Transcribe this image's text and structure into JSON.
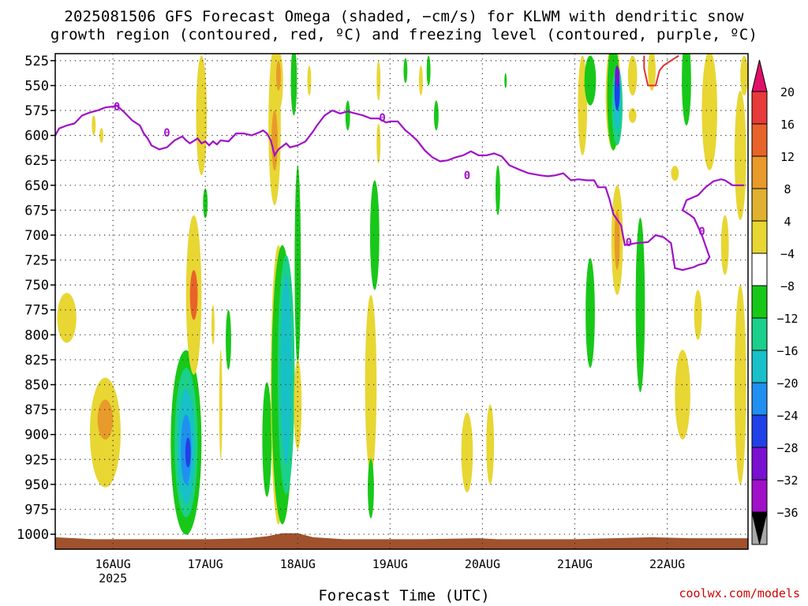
{
  "title": {
    "line1": "2025081506 GFS Forecast Omega (shaded, −cm/s) for KLWM with dendritic snow",
    "line2": "growth region (contoured, red, ºC) and freezing level (contoured, purple, ºC)"
  },
  "credit": "coolwx.com/models",
  "chart_data": {
    "type": "heatmap",
    "title": "2025081506 GFS Forecast Omega (shaded, −cm/s) for KLWM with dendritic snow growth region (contoured, red, ºC) and freezing level (contoured, purple, ºC)",
    "xlabel": "Forecast Time (UTC)",
    "ylabel": "",
    "x_range_hours": [
      -15,
      165
    ],
    "x_ticks": [
      {
        "hour": 0,
        "label": "16AUG",
        "sub": "2025"
      },
      {
        "hour": 24,
        "label": "17AUG",
        "sub": ""
      },
      {
        "hour": 48,
        "label": "18AUG",
        "sub": ""
      },
      {
        "hour": 72,
        "label": "19AUG",
        "sub": ""
      },
      {
        "hour": 96,
        "label": "20AUG",
        "sub": ""
      },
      {
        "hour": 120,
        "label": "21AUG",
        "sub": ""
      },
      {
        "hour": 144,
        "label": "22AUG",
        "sub": ""
      }
    ],
    "y_range_hpa": [
      1015,
      518
    ],
    "y_ticks": [
      525,
      550,
      575,
      600,
      625,
      650,
      675,
      700,
      725,
      750,
      775,
      800,
      825,
      850,
      875,
      900,
      925,
      950,
      975,
      1000
    ],
    "grid": true,
    "colorbar": {
      "labels": [
        "20",
        "16",
        "12",
        "8",
        "4",
        "−4",
        "−8",
        "−12",
        "−16",
        "−20",
        "−24",
        "−28",
        "−32",
        "−36"
      ],
      "colors": [
        "#e8d633",
        "#e0b030",
        "#e89a2a",
        "#e8632a",
        "#e83a3a"
      ],
      "neg_colors": [
        "#18c818",
        "#1ad08a",
        "#18c0c8",
        "#2090f0",
        "#2040e8",
        "#7a10d0",
        "#a010c8",
        "#a8a8a8"
      ],
      "top_arrow": "#e0106a",
      "bottom_arrow": "#000000"
    },
    "freezing_level": {
      "label": "0",
      "color": "#a010c8",
      "points": [
        [
          -15,
          600
        ],
        [
          -14,
          593
        ],
        [
          -12,
          590
        ],
        [
          -10,
          588
        ],
        [
          -8,
          580
        ],
        [
          -6,
          577
        ],
        [
          -4,
          575
        ],
        [
          -2,
          572
        ],
        [
          0,
          571
        ],
        [
          1,
          570
        ],
        [
          3,
          577
        ],
        [
          5,
          585
        ],
        [
          7,
          590
        ],
        [
          8,
          598
        ],
        [
          9,
          603
        ],
        [
          10,
          610
        ],
        [
          12,
          614
        ],
        [
          14,
          612
        ],
        [
          16,
          605
        ],
        [
          18,
          601
        ],
        [
          19,
          605
        ],
        [
          20,
          608
        ],
        [
          22,
          603
        ],
        [
          23,
          608
        ],
        [
          24,
          606
        ],
        [
          25,
          610
        ],
        [
          26,
          606
        ],
        [
          27,
          609
        ],
        [
          28,
          605
        ],
        [
          30,
          606
        ],
        [
          32,
          598
        ],
        [
          34,
          598
        ],
        [
          36,
          600
        ],
        [
          38,
          597
        ],
        [
          39,
          595
        ],
        [
          40,
          598
        ],
        [
          41,
          605
        ],
        [
          42,
          620
        ],
        [
          43,
          614
        ],
        [
          45,
          608
        ],
        [
          46,
          612
        ],
        [
          48,
          610
        ],
        [
          50,
          606
        ],
        [
          52,
          596
        ],
        [
          53,
          590
        ],
        [
          55,
          580
        ],
        [
          57,
          575
        ],
        [
          59,
          578
        ],
        [
          61,
          576
        ],
        [
          63,
          578
        ],
        [
          65,
          580
        ],
        [
          67,
          583
        ],
        [
          69,
          583
        ],
        [
          71,
          587
        ],
        [
          72,
          586
        ],
        [
          74,
          586
        ],
        [
          76,
          595
        ],
        [
          77,
          598
        ],
        [
          79,
          605
        ],
        [
          81,
          615
        ],
        [
          83,
          622
        ],
        [
          85,
          626
        ],
        [
          87,
          625
        ],
        [
          89,
          622
        ],
        [
          91,
          620
        ],
        [
          93,
          616
        ],
        [
          95,
          620
        ],
        [
          97,
          620
        ],
        [
          99,
          618
        ],
        [
          101,
          621
        ],
        [
          103,
          630
        ],
        [
          106,
          635
        ],
        [
          108,
          638
        ],
        [
          111,
          640
        ],
        [
          113,
          641
        ],
        [
          115,
          640
        ],
        [
          117,
          638
        ],
        [
          119,
          645
        ],
        [
          121,
          644
        ],
        [
          123,
          645
        ],
        [
          125,
          645
        ],
        [
          126,
          652
        ],
        [
          128,
          652
        ],
        [
          129,
          664
        ],
        [
          130,
          679
        ],
        [
          132,
          690
        ],
        [
          133,
          710
        ],
        [
          136,
          708
        ],
        [
          139,
          707
        ],
        [
          141,
          700
        ],
        [
          143,
          702
        ],
        [
          145,
          708
        ],
        [
          146,
          733
        ],
        [
          148,
          735
        ],
        [
          151,
          732
        ],
        [
          152,
          730
        ],
        [
          154,
          728
        ],
        [
          155,
          722
        ],
        [
          153,
          700
        ],
        [
          151,
          683
        ],
        [
          150,
          680
        ],
        [
          148,
          675
        ],
        [
          149,
          665
        ],
        [
          152,
          660
        ],
        [
          154,
          652
        ],
        [
          156,
          646
        ],
        [
          158,
          644
        ],
        [
          159,
          645
        ],
        [
          161,
          650
        ],
        [
          164,
          650
        ]
      ]
    },
    "dendritic_contour": {
      "color": "#e03030",
      "points": [
        [
          138,
          520
        ],
        [
          138,
          533
        ],
        [
          139,
          550
        ],
        [
          141,
          550
        ],
        [
          142,
          535
        ],
        [
          143,
          530
        ],
        [
          145,
          525
        ],
        [
          147,
          520
        ]
      ]
    },
    "terrain": {
      "color": "#a0522d",
      "points": [
        [
          -15,
          1003
        ],
        [
          -5,
          1005
        ],
        [
          5,
          1005
        ],
        [
          15,
          1005
        ],
        [
          25,
          1005
        ],
        [
          35,
          1004
        ],
        [
          40,
          1002
        ],
        [
          44,
          999
        ],
        [
          48,
          999
        ],
        [
          52,
          1003
        ],
        [
          60,
          1005
        ],
        [
          80,
          1005
        ],
        [
          95,
          1004
        ],
        [
          100,
          1005
        ],
        [
          120,
          1005
        ],
        [
          130,
          1004
        ],
        [
          140,
          1003
        ],
        [
          150,
          1004
        ],
        [
          165,
          1004
        ]
      ]
    },
    "omega_blobs": [
      {
        "x": -2,
        "p": 898,
        "w": 4,
        "h": 110,
        "c": "#e8d633"
      },
      {
        "x": -2,
        "p": 885,
        "w": 2,
        "h": 40,
        "c": "#e89a2a"
      },
      {
        "x": -12,
        "p": 783,
        "w": 2.5,
        "h": 50,
        "c": "#e8d633"
      },
      {
        "x": -3,
        "p": 600,
        "w": 0.5,
        "h": 15,
        "c": "#e8d633"
      },
      {
        "x": -5,
        "p": 590,
        "w": 0.5,
        "h": 20,
        "c": "#e8d633"
      },
      {
        "x": 19,
        "p": 908,
        "w": 4,
        "h": 185,
        "c": "#18c818"
      },
      {
        "x": 19,
        "p": 908,
        "w": 3,
        "h": 150,
        "c": "#1ad08a"
      },
      {
        "x": 19,
        "p": 912,
        "w": 2.2,
        "h": 115,
        "c": "#18c0c8"
      },
      {
        "x": 19,
        "p": 915,
        "w": 1.4,
        "h": 70,
        "c": "#2090f0"
      },
      {
        "x": 19.5,
        "p": 918,
        "w": 0.7,
        "h": 30,
        "c": "#2040e8"
      },
      {
        "x": 21,
        "p": 760,
        "w": 2,
        "h": 160,
        "c": "#e8d633"
      },
      {
        "x": 21,
        "p": 760,
        "w": 1,
        "h": 50,
        "c": "#e8632a"
      },
      {
        "x": 23,
        "p": 580,
        "w": 1.4,
        "h": 120,
        "c": "#e8d633"
      },
      {
        "x": 24,
        "p": 668,
        "w": 0.6,
        "h": 30,
        "c": "#18c818"
      },
      {
        "x": 26,
        "p": 790,
        "w": 0.4,
        "h": 40,
        "c": "#e8d633"
      },
      {
        "x": 28,
        "p": 870,
        "w": 0.4,
        "h": 110,
        "c": "#e8d633"
      },
      {
        "x": 30,
        "p": 805,
        "w": 0.7,
        "h": 60,
        "c": "#18c818"
      },
      {
        "x": 40,
        "p": 905,
        "w": 1.2,
        "h": 115,
        "c": "#18c818"
      },
      {
        "x": 42,
        "p": 590,
        "w": 1.6,
        "h": 160,
        "c": "#e8d633"
      },
      {
        "x": 42,
        "p": 605,
        "w": 0.8,
        "h": 60,
        "c": "#e89a2a"
      },
      {
        "x": 43,
        "p": 545,
        "w": 1.2,
        "h": 60,
        "c": "#e8d633"
      },
      {
        "x": 43,
        "p": 540,
        "w": 0.6,
        "h": 30,
        "c": "#e89a2a"
      },
      {
        "x": 43,
        "p": 850,
        "w": 2,
        "h": 280,
        "c": "#e8d633"
      },
      {
        "x": 43,
        "p": 900,
        "w": 0.8,
        "h": 160,
        "c": "#e89a2a"
      },
      {
        "x": 44,
        "p": 850,
        "w": 2.8,
        "h": 280,
        "c": "#18c818"
      },
      {
        "x": 45,
        "p": 840,
        "w": 2.2,
        "h": 240,
        "c": "#1ad08a"
      },
      {
        "x": 45,
        "p": 835,
        "w": 1.4,
        "h": 190,
        "c": "#18c0c8"
      },
      {
        "x": 48,
        "p": 730,
        "w": 0.8,
        "h": 200,
        "c": "#18c818"
      },
      {
        "x": 47,
        "p": 545,
        "w": 0.8,
        "h": 70,
        "c": "#18c818"
      },
      {
        "x": 48,
        "p": 870,
        "w": 1,
        "h": 90,
        "c": "#e8d633"
      },
      {
        "x": 51,
        "p": 545,
        "w": 0.5,
        "h": 30,
        "c": "#e8d633"
      },
      {
        "x": 61,
        "p": 580,
        "w": 0.6,
        "h": 30,
        "c": "#18c818"
      },
      {
        "x": 67,
        "p": 850,
        "w": 1.5,
        "h": 180,
        "c": "#e8d633"
      },
      {
        "x": 68,
        "p": 700,
        "w": 1.2,
        "h": 110,
        "c": "#18c818"
      },
      {
        "x": 67,
        "p": 954,
        "w": 0.8,
        "h": 60,
        "c": "#18c818"
      },
      {
        "x": 69,
        "p": 608,
        "w": 0.5,
        "h": 40,
        "c": "#e8d633"
      },
      {
        "x": 69,
        "p": 545,
        "w": 0.5,
        "h": 40,
        "c": "#e8d633"
      },
      {
        "x": 76,
        "p": 535,
        "w": 0.5,
        "h": 25,
        "c": "#18c818"
      },
      {
        "x": 80,
        "p": 545,
        "w": 0.5,
        "h": 30,
        "c": "#e8d633"
      },
      {
        "x": 82,
        "p": 535,
        "w": 0.5,
        "h": 30,
        "c": "#18c818"
      },
      {
        "x": 84,
        "p": 580,
        "w": 0.6,
        "h": 30,
        "c": "#18c818"
      },
      {
        "x": 92,
        "p": 918,
        "w": 1.5,
        "h": 80,
        "c": "#e8d633"
      },
      {
        "x": 98,
        "p": 910,
        "w": 1,
        "h": 80,
        "c": "#e8d633"
      },
      {
        "x": 100,
        "p": 655,
        "w": 0.6,
        "h": 50,
        "c": "#18c818"
      },
      {
        "x": 102,
        "p": 545,
        "w": 0.3,
        "h": 15,
        "c": "#18c818"
      },
      {
        "x": 122,
        "p": 570,
        "w": 1.2,
        "h": 100,
        "c": "#e8d633"
      },
      {
        "x": 124,
        "p": 545,
        "w": 1.5,
        "h": 50,
        "c": "#18c818"
      },
      {
        "x": 124,
        "p": 778,
        "w": 1.2,
        "h": 110,
        "c": "#18c818"
      },
      {
        "x": 130,
        "p": 560,
        "w": 2,
        "h": 110,
        "c": "#e8d633"
      },
      {
        "x": 130,
        "p": 560,
        "w": 1.6,
        "h": 110,
        "c": "#18c818"
      },
      {
        "x": 131,
        "p": 570,
        "w": 1.4,
        "h": 80,
        "c": "#1ad08a"
      },
      {
        "x": 131,
        "p": 565,
        "w": 1,
        "h": 60,
        "c": "#18c0c8"
      },
      {
        "x": 131,
        "p": 555,
        "w": 0.7,
        "h": 40,
        "c": "#2040e8"
      },
      {
        "x": 131,
        "p": 540,
        "w": 0.6,
        "h": 20,
        "c": "#7a10d0"
      },
      {
        "x": 131,
        "p": 705,
        "w": 1.5,
        "h": 110,
        "c": "#e8d633"
      },
      {
        "x": 131,
        "p": 705,
        "w": 0.7,
        "h": 60,
        "c": "#e89a2a"
      },
      {
        "x": 135,
        "p": 540,
        "w": 1.2,
        "h": 40,
        "c": "#e8d633"
      },
      {
        "x": 135,
        "p": 580,
        "w": 1,
        "h": 15,
        "c": "#e8d633"
      },
      {
        "x": 137,
        "p": 770,
        "w": 1.2,
        "h": 175,
        "c": "#18c818"
      },
      {
        "x": 140,
        "p": 535,
        "w": 1,
        "h": 40,
        "c": "#e8d633"
      },
      {
        "x": 146,
        "p": 638,
        "w": 1,
        "h": 15,
        "c": "#e8d633"
      },
      {
        "x": 148,
        "p": 860,
        "w": 2,
        "h": 90,
        "c": "#e8d633"
      },
      {
        "x": 149,
        "p": 545,
        "w": 1.2,
        "h": 90,
        "c": "#18c818"
      },
      {
        "x": 152,
        "p": 780,
        "w": 1,
        "h": 50,
        "c": "#e8d633"
      },
      {
        "x": 155,
        "p": 575,
        "w": 2,
        "h": 120,
        "c": "#e8d633"
      },
      {
        "x": 159,
        "p": 710,
        "w": 1,
        "h": 60,
        "c": "#e8d633"
      },
      {
        "x": 163,
        "p": 620,
        "w": 1.5,
        "h": 130,
        "c": "#e8d633"
      },
      {
        "x": 163,
        "p": 850,
        "w": 1.5,
        "h": 200,
        "c": "#e8d633"
      },
      {
        "x": 164,
        "p": 540,
        "w": 1,
        "h": 40,
        "c": "#e8d633"
      }
    ]
  }
}
